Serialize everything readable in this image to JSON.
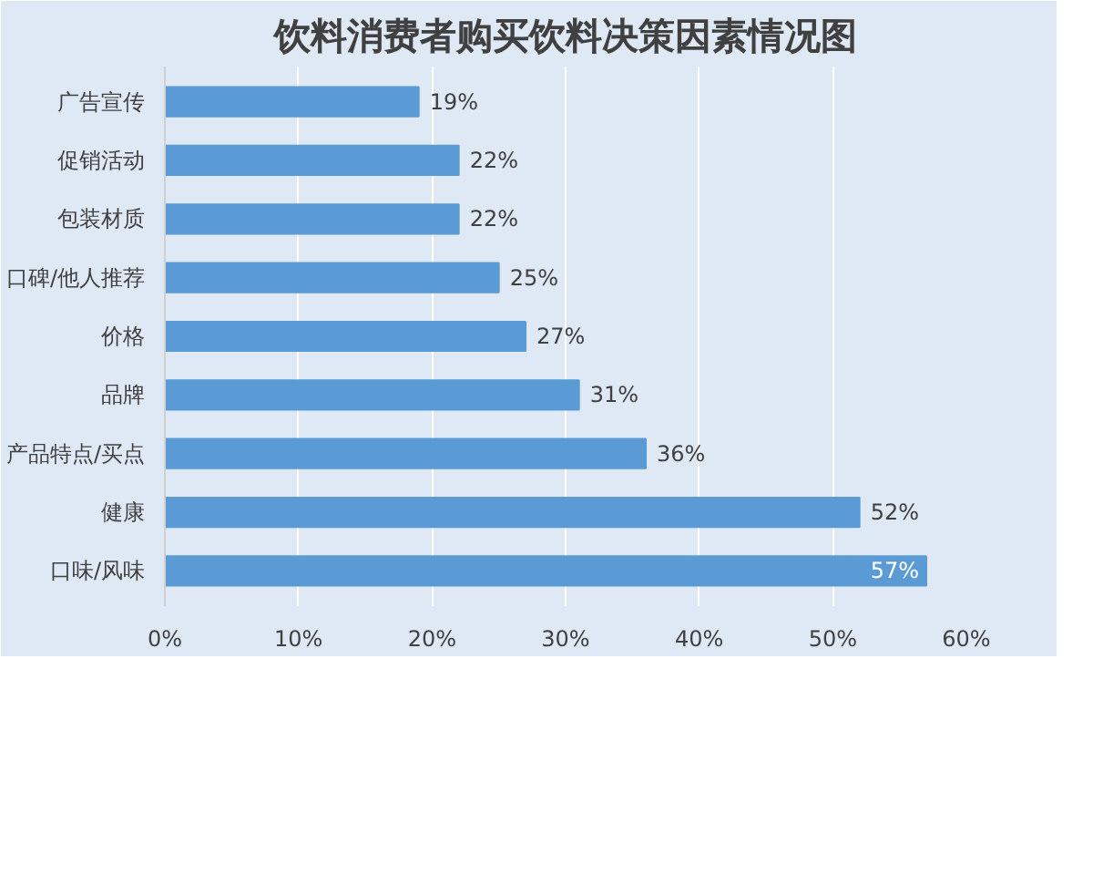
{
  "chart_data": {
    "type": "bar",
    "orientation": "horizontal",
    "title": "饮料消费者购买饮料决策因素情况图",
    "categories": [
      "广告宣传",
      "促销活动",
      "包装材质",
      "口碑/他人推荐",
      "价格",
      "品牌",
      "产品特点/买点",
      "健康",
      "口味/风味"
    ],
    "values": [
      19,
      22,
      22,
      25,
      27,
      31,
      36,
      52,
      57
    ],
    "value_labels": [
      "19%",
      "22%",
      "22%",
      "25%",
      "27%",
      "31%",
      "36%",
      "52%",
      "57%"
    ],
    "color": "#5b9bd5",
    "xlim": [
      0,
      60
    ],
    "xticks": [
      {
        "value": 0,
        "label": "0%"
      },
      {
        "value": 10,
        "label": "10%"
      },
      {
        "value": 20,
        "label": "20%"
      },
      {
        "value": 30,
        "label": "30%"
      },
      {
        "value": 40,
        "label": "40%"
      },
      {
        "value": 50,
        "label": "50%"
      },
      {
        "value": 60,
        "label": "60%"
      }
    ],
    "grid": "x"
  }
}
